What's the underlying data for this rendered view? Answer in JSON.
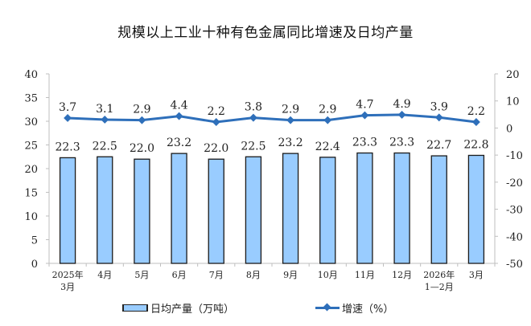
{
  "title": "规模以上工业十种有色金属同比增速及日均产量",
  "legend": {
    "bar_label": "日均产量（万吨）",
    "line_label": "增速（%）"
  },
  "colors": {
    "bar_fill": "#99ccff",
    "bar_stroke": "#1a1a1a",
    "line": "#2e6fba"
  },
  "chart_data": {
    "type": "bar+line",
    "title": "规模以上工业十种有色金属同比增速及日均产量",
    "categories": [
      "2025年\n3月",
      "4月",
      "5月",
      "6月",
      "7月",
      "8月",
      "9月",
      "10月",
      "11月",
      "12月",
      "2026年\n1—2月",
      "3月"
    ],
    "category_lines": [
      [
        "2025年",
        "3月"
      ],
      [
        "4月"
      ],
      [
        "5月"
      ],
      [
        "6月"
      ],
      [
        "7月"
      ],
      [
        "8月"
      ],
      [
        "9月"
      ],
      [
        "10月"
      ],
      [
        "11月"
      ],
      [
        "12月"
      ],
      [
        "2026年",
        "1—2月"
      ],
      [
        "3月"
      ]
    ],
    "series": [
      {
        "name": "日均产量（万吨）",
        "type": "bar",
        "axis": "left",
        "values": [
          22.3,
          22.5,
          22.0,
          23.2,
          22.0,
          22.5,
          23.2,
          22.4,
          23.3,
          23.3,
          22.7,
          22.8
        ]
      },
      {
        "name": "增速（%）",
        "type": "line",
        "axis": "right",
        "values": [
          3.7,
          3.1,
          2.9,
          4.4,
          2.2,
          3.8,
          2.9,
          2.9,
          4.7,
          4.9,
          3.9,
          2.2
        ]
      }
    ],
    "left_axis": {
      "ylim": [
        0,
        40
      ],
      "ticks": [
        0,
        5,
        10,
        15,
        20,
        25,
        30,
        35,
        40
      ]
    },
    "right_axis": {
      "ylim": [
        -50,
        20
      ],
      "ticks": [
        -50,
        -40,
        -30,
        -20,
        -10,
        0,
        10,
        20
      ]
    },
    "grid": false,
    "legend_position": "bottom"
  }
}
